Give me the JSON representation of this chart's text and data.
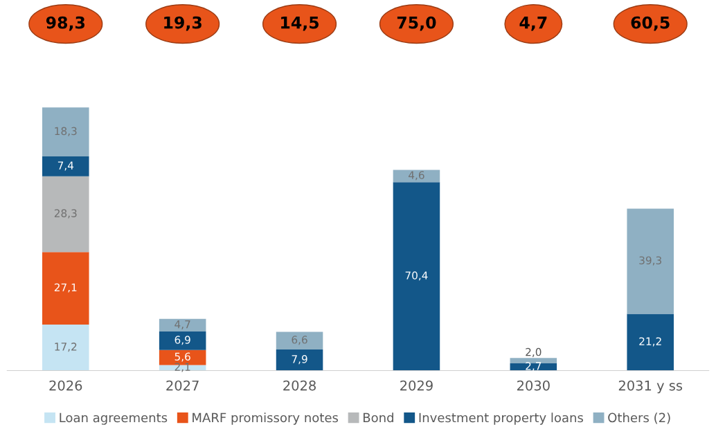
{
  "chart_data": {
    "type": "bar",
    "stacked": true,
    "categories": [
      "2026",
      "2027",
      "2028",
      "2029",
      "2030",
      "2031 y ss"
    ],
    "series": [
      {
        "name": "Loan agreements",
        "color": "#c5e4f3",
        "values": [
          17.2,
          2.1,
          null,
          null,
          null,
          null
        ],
        "value_labels": [
          "17,2",
          "2,1",
          null,
          null,
          null,
          null
        ]
      },
      {
        "name": "MARF promissory notes",
        "color": "#e8541a",
        "values": [
          27.1,
          5.6,
          null,
          null,
          null,
          null
        ],
        "value_labels": [
          "27,1",
          "5,6",
          null,
          null,
          null,
          null
        ]
      },
      {
        "name": "Bond",
        "color": "#b7b9ba",
        "values": [
          28.3,
          null,
          null,
          null,
          null,
          null
        ],
        "value_labels": [
          "28,3",
          null,
          null,
          null,
          null,
          null
        ]
      },
      {
        "name": "Investment property loans",
        "color": "#135789",
        "values": [
          7.4,
          6.9,
          7.9,
          70.4,
          2.7,
          21.2
        ],
        "value_labels": [
          "7,4",
          "6,9",
          "7,9",
          "70,4",
          "2,7",
          "21,2"
        ]
      },
      {
        "name": "Others (2)",
        "color": "#8fb0c3",
        "values": [
          18.3,
          4.7,
          6.6,
          4.6,
          2.0,
          39.3
        ],
        "value_labels": [
          "18,3",
          "4,7",
          "6,6",
          "4,6",
          "2,0",
          "39,3"
        ]
      }
    ],
    "annotations": [
      "98,3",
      "19,3",
      "14,5",
      "75,0",
      "4,7",
      "60,5"
    ],
    "tick_labels": "x",
    "grid": false,
    "legend": "bottom"
  }
}
